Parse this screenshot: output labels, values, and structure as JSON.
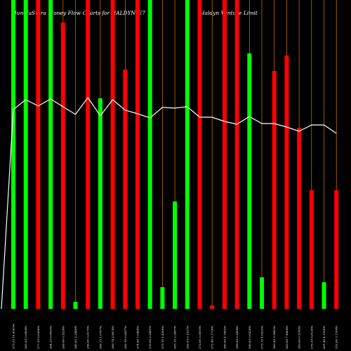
{
  "chart_data": {
    "type": "bar",
    "title_left": "MunafaSutra Money Flow Charts for HALDYN_E7",
    "title_right": "(Haldyn Venture Limit",
    "colors": {
      "up": "#00ff00",
      "down": "#ff0000",
      "line": "#ffffff",
      "grid": "#ff8c00",
      "bg": "#000000"
    },
    "ylim": [
      0,
      440
    ],
    "bars": [
      {
        "label": "273.35 10.6205%",
        "color": "up",
        "value": 440
      },
      {
        "label": "262.65 0.0004%",
        "color": "up",
        "value": 440
      },
      {
        "label": "277.35 0.0298%",
        "color": "down",
        "value": 440
      },
      {
        "label": "264.25 0.0092%",
        "color": "up",
        "value": 440
      },
      {
        "label": "269.00 0.5224%",
        "color": "down",
        "value": 408
      },
      {
        "label": "280.85 2.2448%",
        "color": "up",
        "value": 10
      },
      {
        "label": "256.00 3.6175%",
        "color": "down",
        "value": 440
      },
      {
        "label": "269.15 1.0767%",
        "color": "up",
        "value": 300
      },
      {
        "label": "269.74 2.9078%",
        "color": "down",
        "value": 440
      },
      {
        "label": "282.10 0.8857%",
        "color": "down",
        "value": 341
      },
      {
        "label": "274.00 7.0484%",
        "color": "down",
        "value": 440
      },
      {
        "label": "276.00 2.2491%",
        "color": "up",
        "value": 440
      },
      {
        "label": "275.10 1.4200%",
        "color": "up",
        "value": 31
      },
      {
        "label": "265.10 2.5497%",
        "color": "up",
        "value": 153
      },
      {
        "label": "292.05 0.1521%",
        "color": "up",
        "value": 440
      },
      {
        "label": "272.00 3.5815%",
        "color": "down",
        "value": 440
      },
      {
        "label": "272.40 0.1716%",
        "color": "down",
        "value": 5
      },
      {
        "label": "300.00 4.7882%",
        "color": "down",
        "value": 440
      },
      {
        "label": "289.60 3.2604%",
        "color": "down",
        "value": 440
      },
      {
        "label": "290.65 0.0228%",
        "color": "up",
        "value": 364
      },
      {
        "label": "273.70 4.0223%",
        "color": "up",
        "value": 45
      },
      {
        "label": "285.90 5.5641%",
        "color": "down",
        "value": 339
      },
      {
        "label": "283.00 7.4964%",
        "color": "down",
        "value": 361
      },
      {
        "label": "283.60 0.2143%",
        "color": "down",
        "value": 258
      },
      {
        "label": "270.35 0.6130%",
        "color": "down",
        "value": 169
      },
      {
        "label": "261.40 4.1526%",
        "color": "up",
        "value": 38
      },
      {
        "label": "252.00 3.1164%",
        "color": "down",
        "value": 169
      }
    ],
    "line": [
      0,
      284,
      298,
      289,
      299,
      288,
      277,
      301,
      275,
      298,
      283,
      278,
      272,
      287,
      286,
      288,
      273,
      273,
      267,
      263,
      274,
      264,
      264,
      259,
      253,
      262,
      262,
      250
    ]
  }
}
